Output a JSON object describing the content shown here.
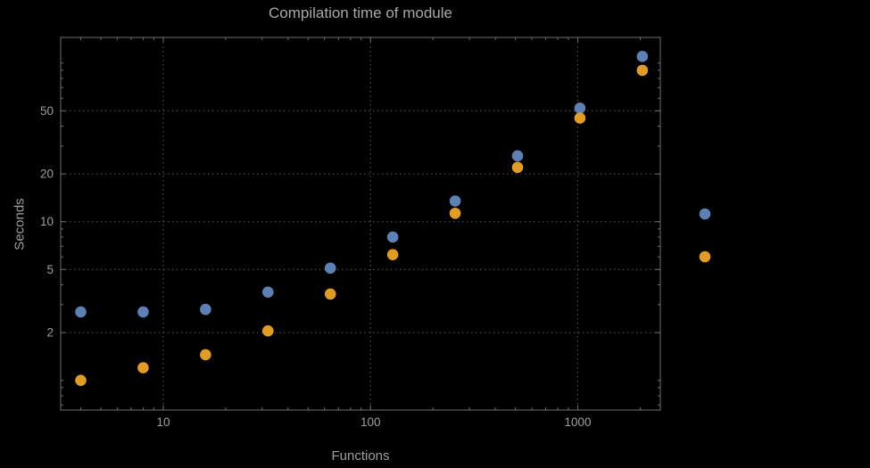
{
  "title": "Compilation time of module",
  "xlabel": "Functions",
  "ylabel": "Seconds",
  "colors": {
    "background": "#000000",
    "frame": "#6f6f6f",
    "grid": "#5a5a5a",
    "tick_text": "#9e9e9e",
    "series1": "#5e81b5",
    "series2": "#e19c24"
  },
  "chart_data": {
    "type": "scatter",
    "x_scale": "log",
    "y_scale": "log",
    "title": "Compilation time of module",
    "xlabel": "Functions",
    "ylabel": "Seconds",
    "grid": true,
    "x": [
      4,
      8,
      16,
      32,
      64,
      128,
      256,
      512,
      1024,
      2048
    ],
    "series": [
      {
        "name": "series-1",
        "color": "#5e81b5",
        "values": [
          2.7,
          2.7,
          2.8,
          3.6,
          5.1,
          8,
          13.5,
          26,
          52,
          110
        ]
      },
      {
        "name": "series-2",
        "color": "#e19c24",
        "values": [
          1.0,
          1.2,
          1.45,
          2.05,
          3.5,
          6.2,
          11.3,
          22,
          45,
          90
        ]
      }
    ],
    "x_ticks": [
      10,
      100,
      1000
    ],
    "y_ticks": [
      2,
      5,
      10,
      20,
      50
    ],
    "xlim": [
      3.2,
      2500
    ],
    "ylim": [
      0.65,
      145
    ],
    "legend_markers": [
      {
        "name": "legend-marker-series-1",
        "color": "#5e81b5"
      },
      {
        "name": "legend-marker-series-2",
        "color": "#e19c24"
      }
    ]
  }
}
